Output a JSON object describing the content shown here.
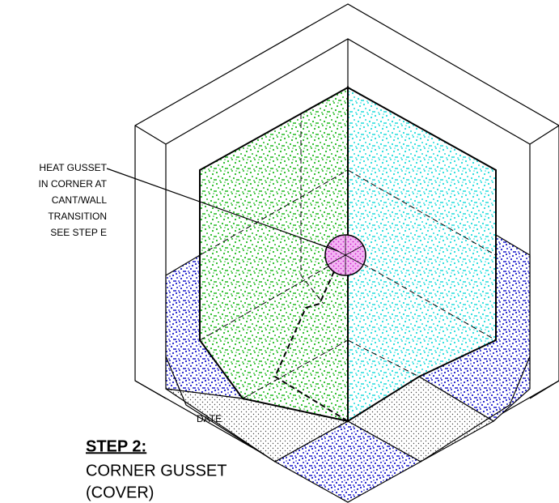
{
  "callout": {
    "lines": [
      "HEAT GUSSET",
      "IN CORNER AT",
      "CANT/WALL",
      "TRANSITION",
      "SEE STEP E"
    ]
  },
  "date_label": "DATE",
  "step": {
    "title": "STEP 2:",
    "lines": [
      "CORNER GUSSET",
      "(COVER)"
    ]
  }
}
